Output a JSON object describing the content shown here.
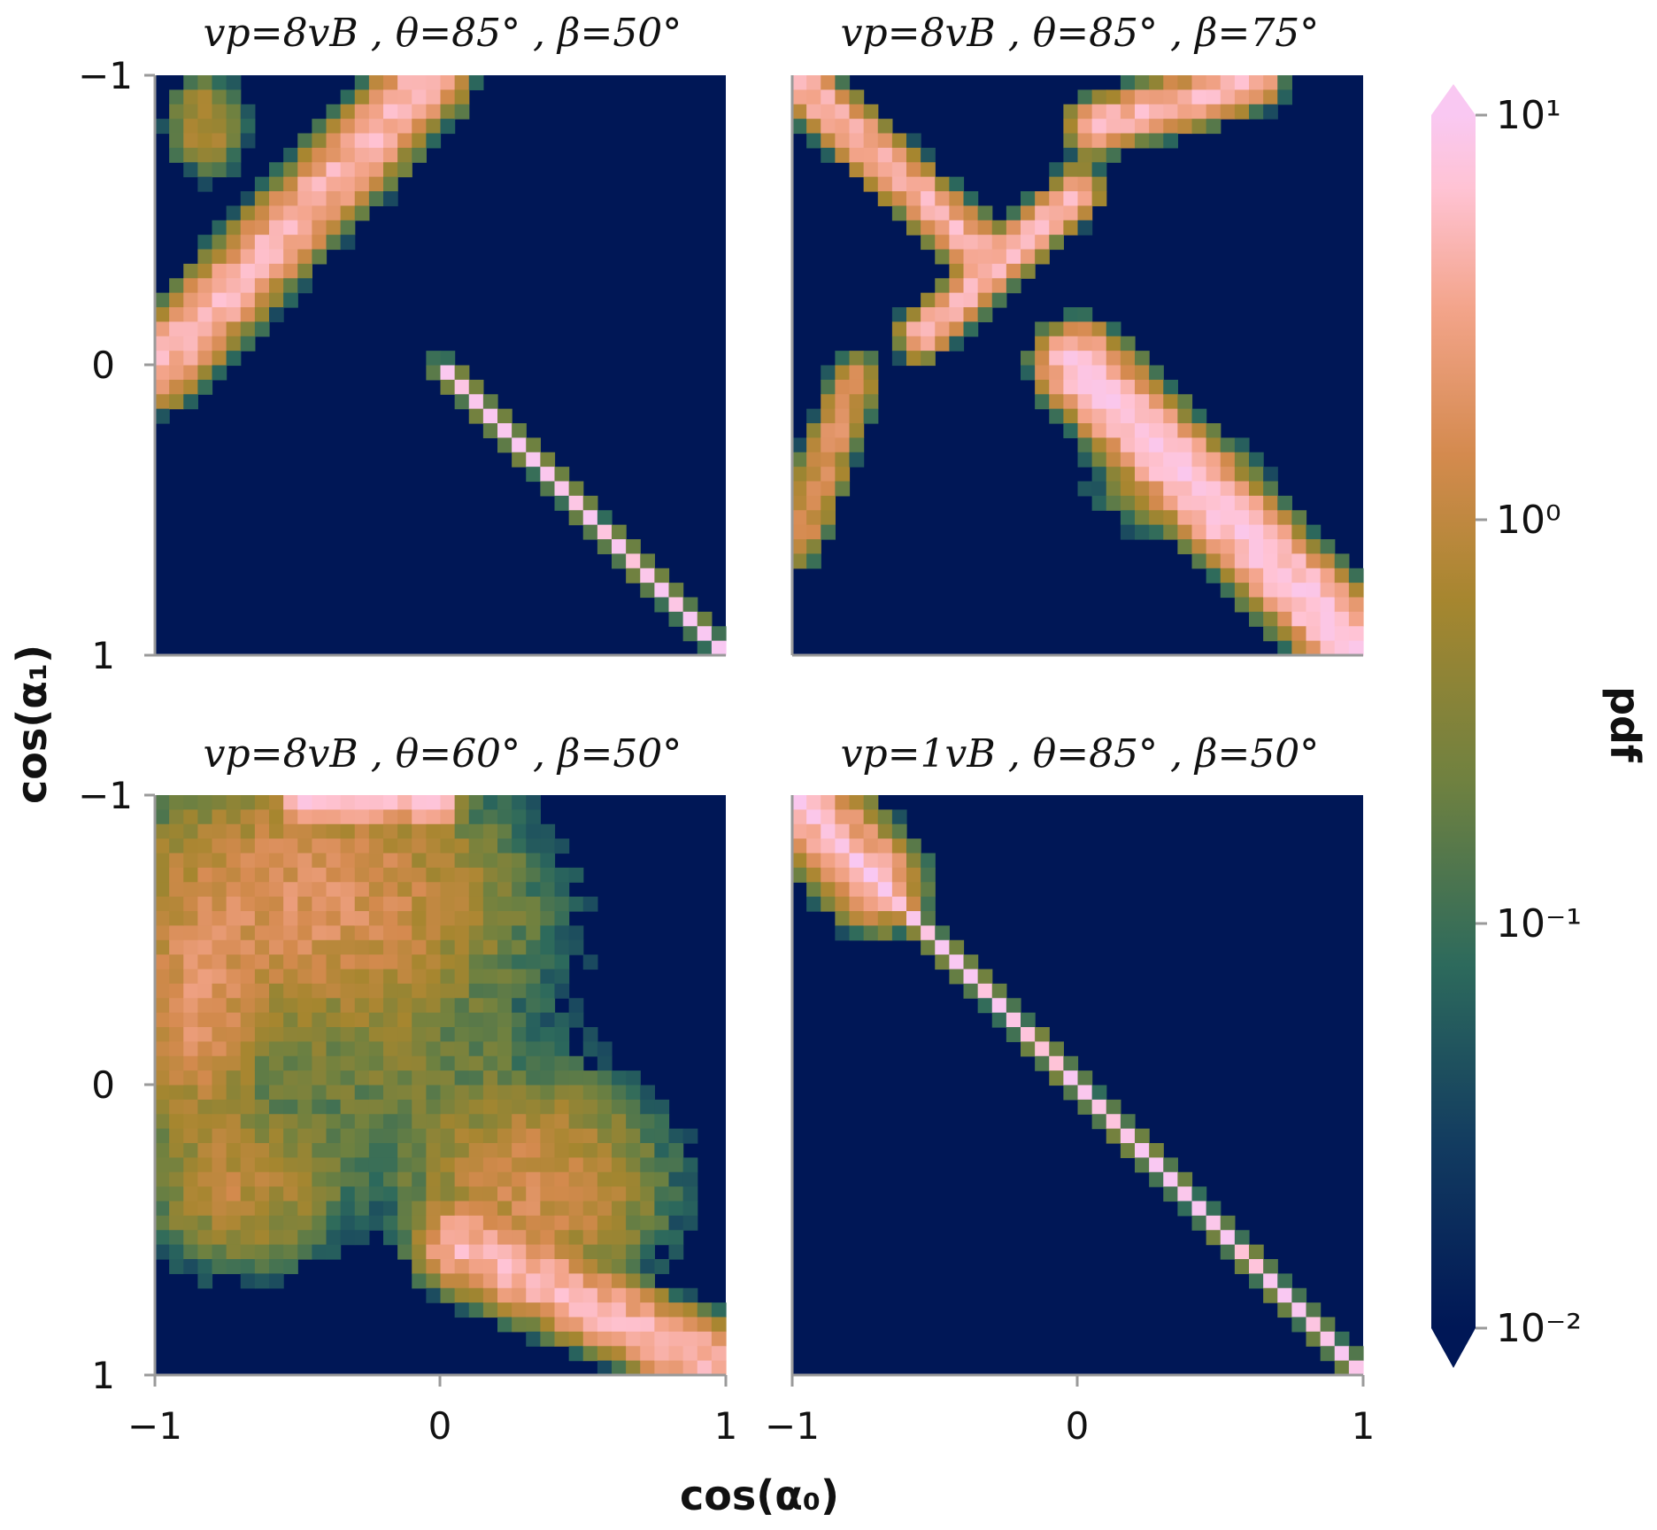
{
  "chart_data": {
    "type": "heatmap",
    "xlabel": "cos(α₀)",
    "ylabel": "cos(α₁)",
    "xlim": [
      -1,
      1
    ],
    "ylim": [
      -1,
      1
    ],
    "y_inverted": true,
    "ticks": [
      "−1",
      "0",
      "1"
    ],
    "tick_values": [
      -1,
      0,
      1
    ],
    "grid": false,
    "grid_bins": 40,
    "colorbar": {
      "label": "pdf",
      "scale": "log",
      "range": [
        0.01,
        10
      ],
      "tick_values": [
        0.01,
        0.1,
        1,
        10
      ],
      "tick_labels": [
        "10⁻²",
        "10⁻¹",
        "10⁰",
        "10¹"
      ],
      "colormap": [
        "#001756",
        "#123b60",
        "#2d6a5c",
        "#6f8140",
        "#a6862f",
        "#d48a4e",
        "#f3a48a",
        "#ffc3d4",
        "#f9c8f2"
      ]
    },
    "panels": [
      {
        "title": "vp=8vB , θ=85° , β=50°",
        "ridges": [
          {
            "x0": -0.98,
            "y0": 0.0,
            "x1": -0.05,
            "y1": -0.98,
            "peak": 3.0,
            "width": 0.06
          },
          {
            "x0": 0.0,
            "y0": 0.0,
            "x1": 1.0,
            "y1": 1.0,
            "peak": 8.0,
            "width": 0.012
          }
        ],
        "blobs": [
          {
            "x": -0.82,
            "y": -0.83,
            "rx": 0.09,
            "ry": 0.12,
            "peak": 0.5
          }
        ]
      },
      {
        "title": "vp=8vB , θ=85° , β=75°",
        "ridges": [
          {
            "x0": -0.98,
            "y0": -0.98,
            "x1": -0.35,
            "y1": -0.4,
            "peak": 3.0,
            "width": 0.04
          },
          {
            "x0": -0.55,
            "y0": -0.1,
            "x1": 0.0,
            "y1": -0.6,
            "peak": 3.0,
            "width": 0.035
          },
          {
            "x0": 0.0,
            "y0": 0.0,
            "x1": 1.0,
            "y1": 1.0,
            "peak": 6.0,
            "width": 0.06
          },
          {
            "x0": 0.05,
            "y0": -0.82,
            "x1": 0.62,
            "y1": -0.98,
            "peak": 3.0,
            "width": 0.04
          },
          {
            "x0": -0.98,
            "y0": 0.6,
            "x1": -0.78,
            "y1": 0.05,
            "peak": 1.0,
            "width": 0.04
          }
        ],
        "blobs": [
          {
            "x": 0.35,
            "y": 0.4,
            "rx": 0.2,
            "ry": 0.12,
            "peak": 0.4
          }
        ]
      },
      {
        "title": "vp=8vB , θ=60° , β=50°",
        "ridges": [
          {
            "x0": -0.5,
            "y0": -0.97,
            "x1": 0.0,
            "y1": -0.97,
            "peak": 4.0,
            "width": 0.03
          },
          {
            "x0": 0.05,
            "y0": 0.55,
            "x1": 1.0,
            "y1": 0.98,
            "peak": 3.0,
            "width": 0.06
          }
        ],
        "blobs": [
          {
            "x": -0.45,
            "y": -0.65,
            "rx": 0.5,
            "ry": 0.3,
            "peak": 1.0
          },
          {
            "x": 0.35,
            "y": 0.35,
            "rx": 0.3,
            "ry": 0.25,
            "peak": 0.8
          },
          {
            "x": -0.7,
            "y": 0.35,
            "rx": 0.25,
            "ry": 0.2,
            "peak": 0.5
          },
          {
            "x": -0.85,
            "y": -0.25,
            "rx": 0.15,
            "ry": 0.3,
            "peak": 1.0
          },
          {
            "x": -0.2,
            "y": -0.1,
            "rx": 0.5,
            "ry": 0.4,
            "peak": 0.15
          }
        ]
      },
      {
        "title": "vp=1vB , θ=85° , β=50°",
        "ridges": [
          {
            "x0": -1.0,
            "y0": -1.0,
            "x1": 1.0,
            "y1": 1.0,
            "peak": 8.0,
            "width": 0.012
          },
          {
            "x0": -0.95,
            "y0": -0.95,
            "x1": -0.7,
            "y1": -0.7,
            "peak": 3.0,
            "width": 0.07
          }
        ],
        "blobs": []
      }
    ]
  }
}
